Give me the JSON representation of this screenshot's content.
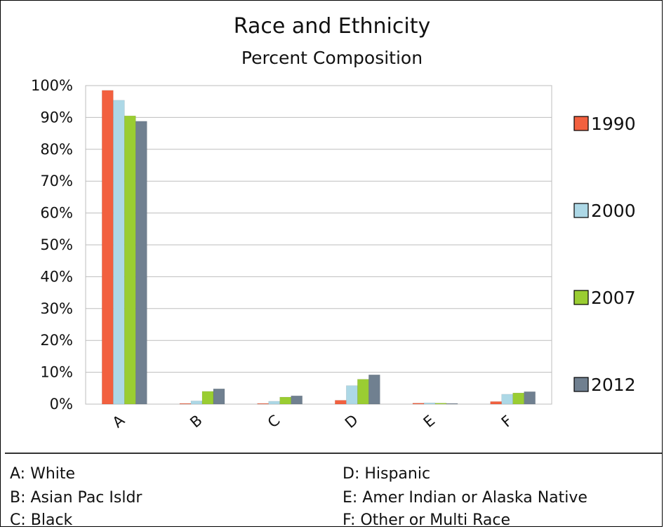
{
  "chart_data": {
    "type": "bar",
    "title": "Race and Ethnicity",
    "subtitle": "Percent Composition",
    "categories": [
      "A",
      "B",
      "C",
      "D",
      "E",
      "F"
    ],
    "series": [
      {
        "name": "1990",
        "color": "#f2603f",
        "values": [
          98.5,
          0.2,
          0.2,
          1.2,
          0.3,
          0.8
        ]
      },
      {
        "name": "2000",
        "color": "#add8e6",
        "values": [
          95.4,
          1.0,
          0.9,
          5.8,
          0.4,
          3.1
        ]
      },
      {
        "name": "2007",
        "color": "#9acd32",
        "values": [
          90.5,
          4.0,
          2.2,
          7.8,
          0.3,
          3.5
        ]
      },
      {
        "name": "2012",
        "color": "#708090",
        "values": [
          88.8,
          4.8,
          2.6,
          9.2,
          0.2,
          3.9
        ]
      }
    ],
    "ylim": [
      0,
      100
    ],
    "yticks": [
      "0%",
      "10%",
      "20%",
      "30%",
      "40%",
      "50%",
      "60%",
      "70%",
      "80%",
      "90%",
      "100%"
    ],
    "grid": true,
    "legend_position": "right"
  },
  "category_key": [
    {
      "text": "A: White"
    },
    {
      "text": "B: Asian Pac Isldr"
    },
    {
      "text": "C: Black"
    },
    {
      "text": "D: Hispanic"
    },
    {
      "text": "E: Amer Indian or Alaska Native"
    },
    {
      "text": "F: Other or Multi Race"
    }
  ]
}
